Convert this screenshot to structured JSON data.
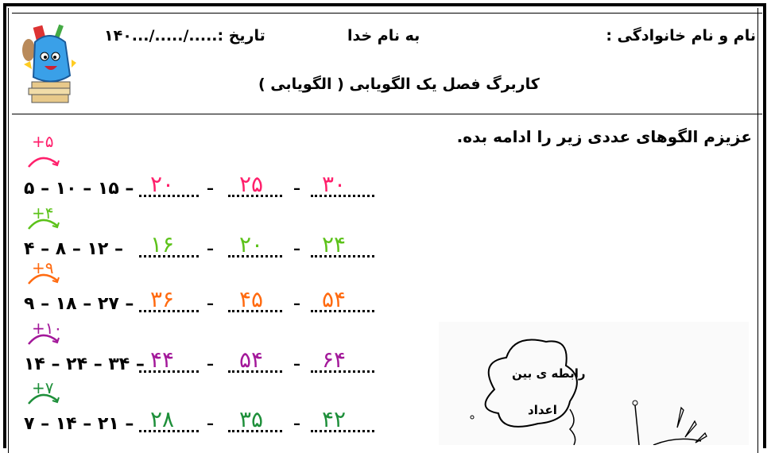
{
  "header": {
    "name_label": "نام و نام خانوادگی :",
    "basmala": "به نام خدا",
    "date_label": "تاریخ :...../...../...۱۴۰",
    "title": "کاربرگ فصل یک الگویابی ( الگویابی )"
  },
  "instruction": "عزیزم الگوهای عددی زیر را ادامه بده.",
  "rows": [
    {
      "given": "۵ – ۱۰ – ۱۵ –",
      "answers": [
        "۲۰",
        "۲۵",
        "۳۰"
      ],
      "hint": "+۵",
      "color": "#ff1f6b"
    },
    {
      "given": "۴ – ۸ – ۱۲ –",
      "answers": [
        "۱۶",
        "۲۰",
        "۲۴"
      ],
      "hint": "+۴",
      "color": "#5cc21a"
    },
    {
      "given": "۹ – ۱۸ – ۲۷ –",
      "answers": [
        "۳۶",
        "۴۵",
        "۵۴"
      ],
      "hint": "+۹",
      "color": "#ff6a10"
    },
    {
      "given": "۱۴ – ۲۴ – ۳۴ –",
      "answers": [
        "۴۴",
        "۵۴",
        "۶۴"
      ],
      "hint": "+۱۰",
      "color": "#a3189a"
    },
    {
      "given": "۷ – ۱۴ – ۲۱ –",
      "answers": [
        "۲۸",
        "۳۵",
        "۴۲"
      ],
      "hint": "+۷",
      "color": "#1e8f3a"
    }
  ],
  "cloud": {
    "line1": "رابطه ی بین",
    "line2": "اعداد"
  }
}
